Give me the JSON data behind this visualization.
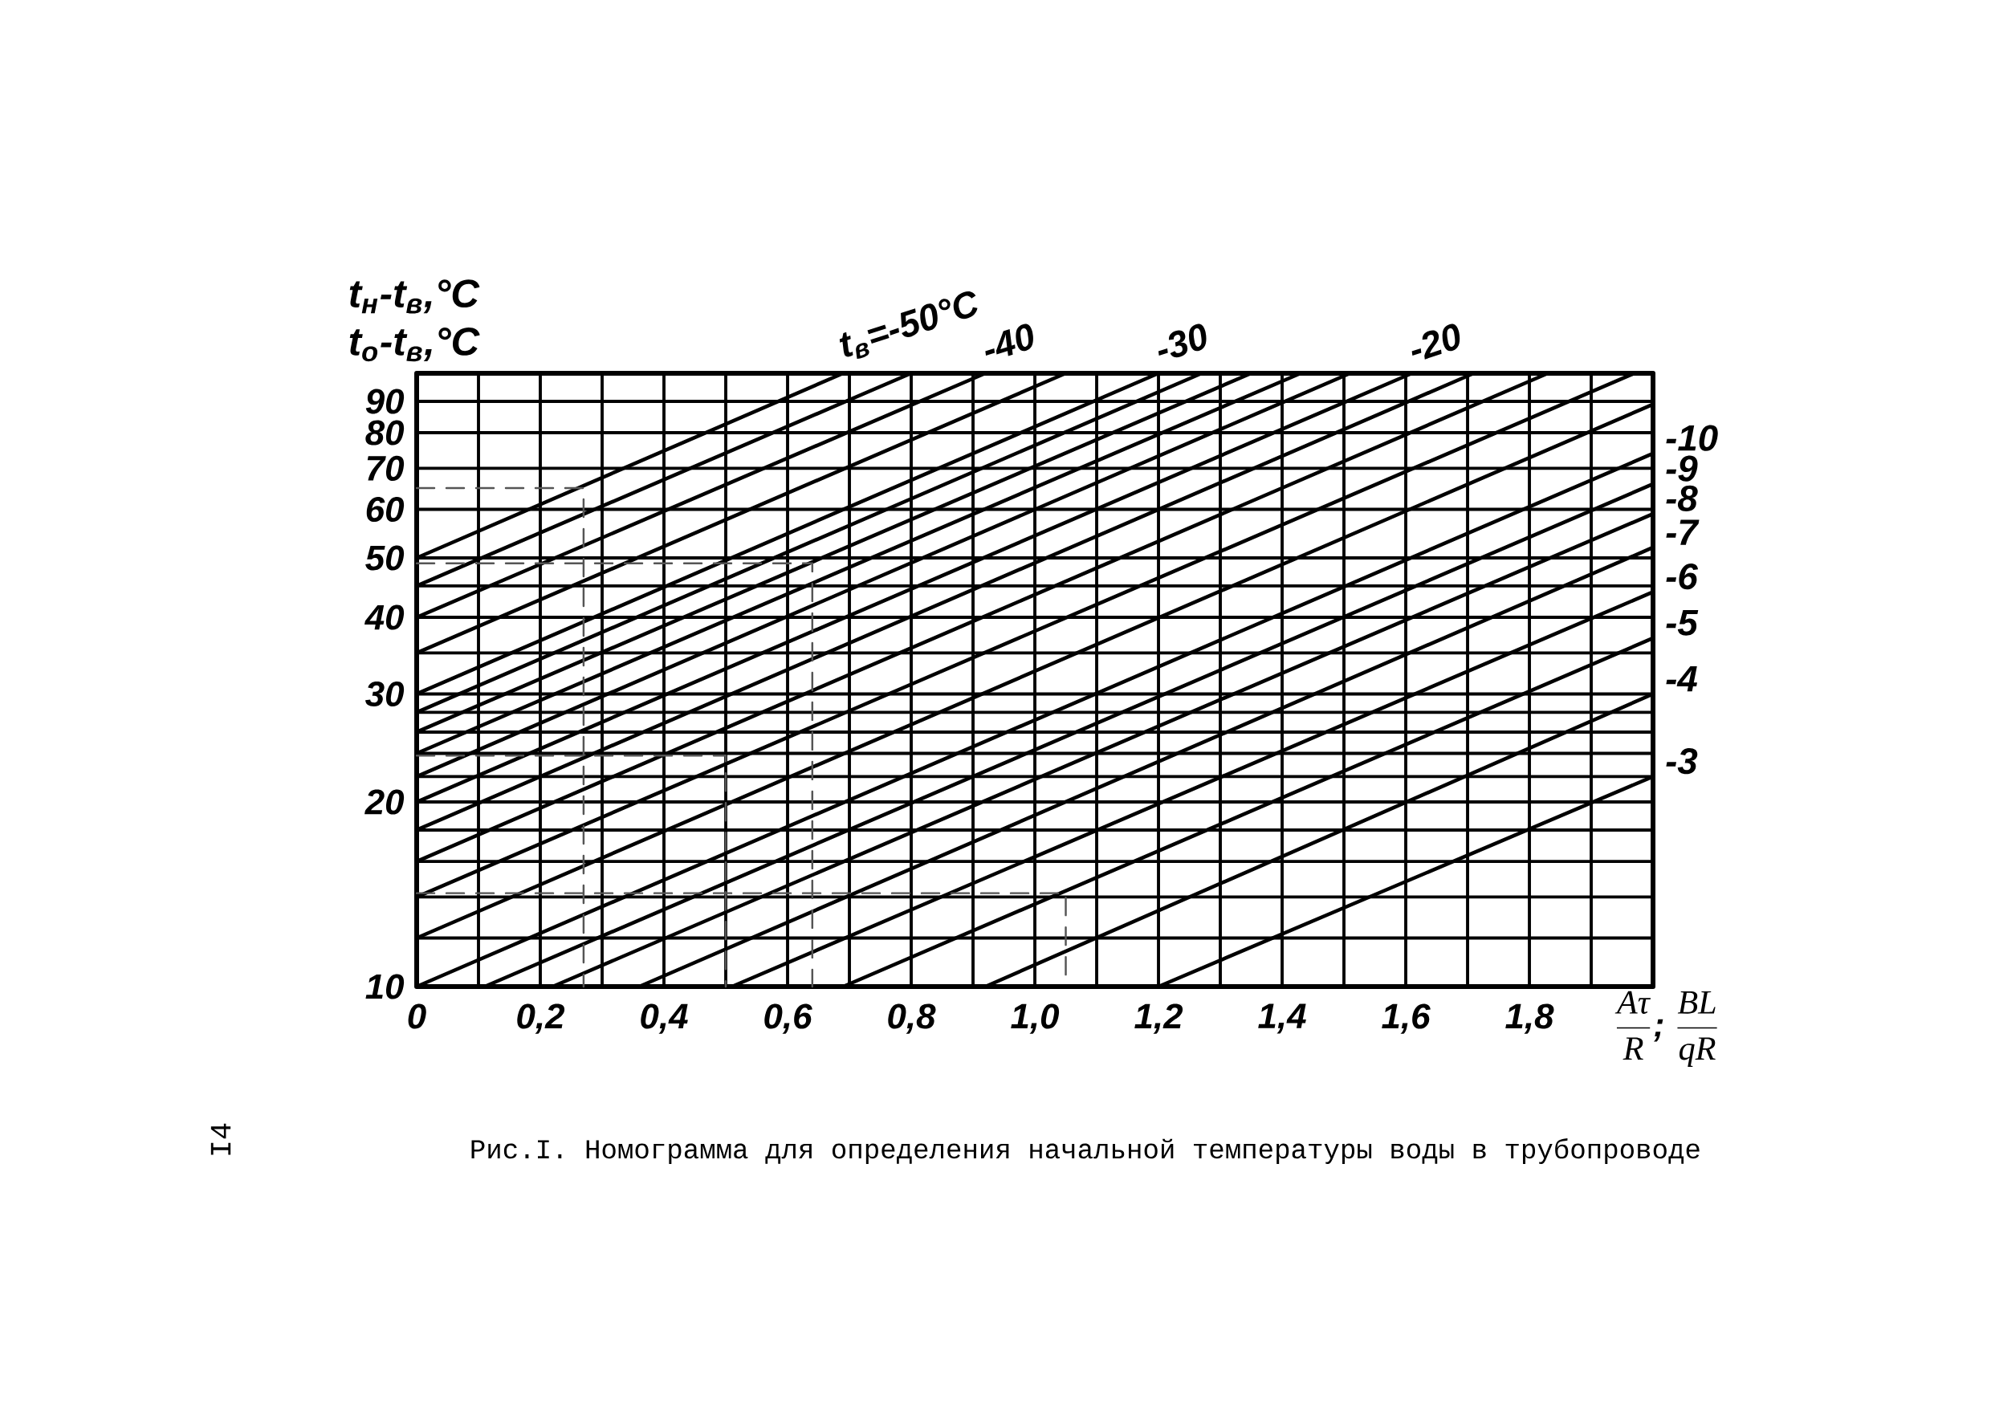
{
  "chart_data": {
    "type": "line",
    "xlabel": "\\frac{A\\tau}{R}\\text{; }\\frac{BL}{qR}",
    "ylabel": "t$_{н}$-t$_{в}$,°C t$_{о}$-t$_{в}$,°C",
    "annotations": [
      "Рис.I. Номограмма для определения начальной температуры воды в трубопроводе",
      "I4"
    ],
    "log": "y",
    "grid": true,
    "xlim": [
      0,
      2
    ],
    "ylim": [
      10,
      100
    ],
    "xticks": [
      0,
      {
        "value": 0.1,
        "label": null
      },
      {
        "value": 0.2,
        "label": "0,2"
      },
      {
        "value": 0.3,
        "label": null
      },
      {
        "value": 0.4,
        "label": "0,4"
      },
      {
        "value": 0.5,
        "label": null
      },
      {
        "value": 0.6,
        "label": "0,6"
      },
      {
        "value": 0.7,
        "label": null
      },
      {
        "value": 0.8,
        "label": "0,8"
      },
      {
        "value": 0.9,
        "label": null
      },
      {
        "value": 1.0,
        "label": "1,0"
      },
      {
        "value": 1.1,
        "label": null
      },
      {
        "value": 1.2,
        "label": "1,2"
      },
      {
        "value": 1.3,
        "label": null
      },
      {
        "value": 1.4,
        "label": "1,4"
      },
      {
        "value": 1.5,
        "label": null
      },
      {
        "value": 1.6,
        "label": "1,6"
      },
      {
        "value": 1.7,
        "label": null
      },
      {
        "value": 1.8,
        "label": "1,8"
      },
      {
        "value": 1.9,
        "label": null
      }
    ],
    "yticks": [
      10,
      {
        "value": 12,
        "label": null
      },
      {
        "value": 14,
        "label": null
      },
      {
        "value": 16,
        "label": null
      },
      {
        "value": 18,
        "label": null
      },
      20,
      {
        "value": 22,
        "label": null
      },
      {
        "value": 24,
        "label": null
      },
      {
        "value": 26,
        "label": null
      },
      {
        "value": 28,
        "label": null
      },
      30,
      {
        "value": 35,
        "label": null
      },
      40,
      {
        "value": 45,
        "label": null
      },
      50,
      60,
      70,
      80,
      90
    ],
    "series": [
      {
        "name": "t$_{в}$=-50°C",
        "color": "#000000",
        "x": [
          0,
          0.69
        ],
        "values": [
          50,
          100
        ]
      },
      {
        "color": "#000000",
        "x": [
          0,
          0.8
        ],
        "values": [
          45,
          100
        ]
      },
      {
        "name": "-40",
        "color": "#000000",
        "x": [
          0,
          0.92
        ],
        "values": [
          40,
          100
        ]
      },
      {
        "color": "#000000",
        "x": [
          0,
          1.05
        ],
        "values": [
          35,
          100
        ]
      },
      {
        "name": "-30",
        "color": "#000000",
        "x": [
          0,
          1.2
        ],
        "values": [
          30,
          100
        ]
      },
      {
        "color": "#000000",
        "x": [
          0,
          1.27
        ],
        "values": [
          28,
          100
        ]
      },
      {
        "color": "#000000",
        "x": [
          0,
          1.35
        ],
        "values": [
          26,
          100
        ]
      },
      {
        "color": "#000000",
        "x": [
          0,
          1.43
        ],
        "values": [
          24,
          100
        ]
      },
      {
        "color": "#000000",
        "x": [
          0,
          1.51
        ],
        "values": [
          22,
          100
        ]
      },
      {
        "name": "-20",
        "color": "#000000",
        "x": [
          0,
          1.61
        ],
        "values": [
          20,
          100
        ]
      },
      {
        "color": "#000000",
        "x": [
          0,
          1.71
        ],
        "values": [
          18,
          100
        ]
      },
      {
        "color": "#000000",
        "x": [
          0,
          1.83
        ],
        "values": [
          16,
          100
        ]
      },
      {
        "color": "#000000",
        "x": [
          0,
          1.97
        ],
        "values": [
          14,
          100
        ]
      },
      {
        "color": "#000000",
        "x": [
          0,
          2
        ],
        "values": [
          12,
          89
        ]
      },
      {
        "name": "-10",
        "color": "#000000",
        "x": [
          0,
          2
        ],
        "values": [
          10,
          74
        ]
      },
      {
        "name": "-9",
        "color": "#000000",
        "x": [
          0.11,
          2
        ],
        "values": [
          10,
          66
        ]
      },
      {
        "name": "-8",
        "color": "#000000",
        "x": [
          0.22,
          2
        ],
        "values": [
          10,
          59
        ]
      },
      {
        "name": "-7",
        "color": "#000000",
        "x": [
          0.36,
          2
        ],
        "values": [
          10,
          52
        ]
      },
      {
        "name": "-6",
        "color": "#000000",
        "x": [
          0.51,
          2
        ],
        "values": [
          10,
          44
        ]
      },
      {
        "name": "-5",
        "color": "#000000",
        "x": [
          0.69,
          2
        ],
        "values": [
          10,
          37
        ]
      },
      {
        "name": "-4",
        "color": "#000000",
        "x": [
          0.92,
          2
        ],
        "values": [
          10,
          30
        ]
      },
      {
        "name": "-3",
        "color": "#000000",
        "x": [
          1.2,
          2
        ],
        "values": [
          10,
          22
        ]
      },
      {
        "color": "#555555",
        "line_style": "dashed",
        "x": [
          0,
          0.27,
          0.27
        ],
        "values": [
          65,
          65,
          10
        ]
      },
      {
        "color": "#555555",
        "line_style": "dashed",
        "x": [
          0,
          0.64,
          0.64
        ],
        "values": [
          49,
          49,
          10
        ]
      },
      {
        "color": "#555555",
        "line_style": "dashed",
        "x": [
          0,
          0.5,
          0.5
        ],
        "values": [
          23.8,
          23.8,
          10
        ]
      },
      {
        "color": "#555555",
        "line_style": "dashed",
        "x": [
          0,
          1.05,
          1.05
        ],
        "values": [
          14.2,
          14.2,
          10
        ]
      }
    ]
  }
}
